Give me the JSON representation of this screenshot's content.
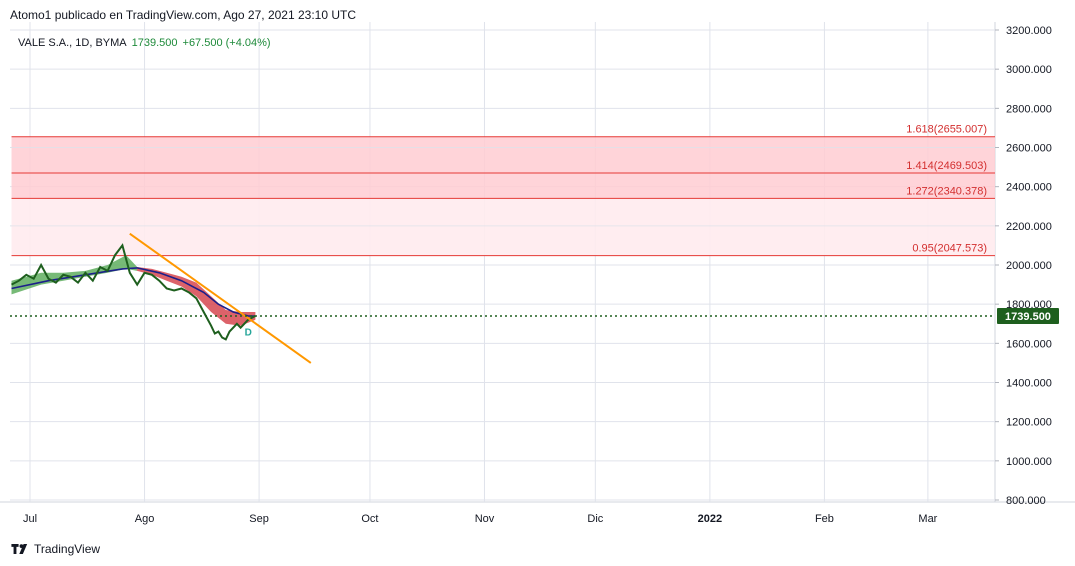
{
  "header": {
    "publisher": "Atomo1 publicado en TradingView.com, Ago 27, 2021 23:10 UTC"
  },
  "legend": {
    "symbol": "VALE S.A., 1D, BYMA",
    "price": "1739.500",
    "change": "+67.500 (+4.04%)"
  },
  "footer": {
    "brand": "TradingView",
    "logo_icon": "tradingview-logo-icon"
  },
  "colors": {
    "price_line": "#1e5f1e",
    "ma_line": "#1c1f8a",
    "cloud_bull": "#5fae5f",
    "cloud_bear": "#d6464f",
    "trendline": "#ff9800",
    "fib_line": "#e53935",
    "fib_zone_dark": "#ffcdd2",
    "fib_zone_light": "#ffebee",
    "last_price_badge": "#1e5f1e",
    "grid": "#e0e3eb",
    "text": "#131722"
  },
  "chart_data": {
    "type": "line",
    "title": "VALE S.A., 1D, BYMA",
    "ylim": [
      800,
      3200
    ],
    "y_ticks": [
      "3200.000",
      "3000.000",
      "2800.000",
      "2600.000",
      "2400.000",
      "2200.000",
      "2000.000",
      "1800.000",
      "1600.000",
      "1400.000",
      "1200.000",
      "1000.000",
      "800.000"
    ],
    "y_tick_values": [
      3200,
      3000,
      2800,
      2600,
      2400,
      2200,
      2000,
      1800,
      1600,
      1400,
      1200,
      1000,
      800
    ],
    "x_ticks": [
      "Jul",
      "Ago",
      "Sep",
      "Oct",
      "Nov",
      "Dic",
      "2022",
      "Feb",
      "Mar"
    ],
    "x_tick_days": [
      0,
      31,
      62,
      92,
      123,
      153,
      184,
      215,
      243
    ],
    "x_start_label": "Jul",
    "last_price": 1739.5,
    "last_price_label": "1739.500",
    "series": [
      {
        "x": [
          -5,
          -3,
          -1,
          1,
          3,
          5,
          7,
          9,
          11,
          13,
          15,
          17,
          19,
          21,
          23,
          25,
          27,
          29,
          31,
          33,
          35,
          37,
          39,
          41,
          43,
          45,
          47,
          49,
          50,
          51,
          52,
          53,
          54,
          55,
          56,
          57,
          58,
          59,
          60,
          61
        ],
        "values": [
          1900,
          1920,
          1950,
          1930,
          2000,
          1930,
          1910,
          1950,
          1940,
          1910,
          1960,
          1920,
          1990,
          1970,
          2050,
          2100,
          1960,
          1900,
          1960,
          1950,
          1920,
          1880,
          1870,
          1880,
          1860,
          1830,
          1760,
          1690,
          1650,
          1660,
          1630,
          1620,
          1660,
          1680,
          1700,
          1680,
          1700,
          1720,
          1730,
          1740
        ]
      },
      {
        "x": [
          -5,
          5,
          15,
          25,
          29,
          35,
          41,
          47,
          51,
          55,
          59,
          61
        ],
        "values": [
          1880,
          1920,
          1950,
          1980,
          1985,
          1960,
          1920,
          1860,
          1800,
          1760,
          1740,
          1739
        ]
      }
    ],
    "cloud": {
      "x": [
        -5,
        3,
        9,
        15,
        21,
        26,
        29,
        33,
        37,
        41,
        45,
        49,
        53,
        57,
        61
      ],
      "upper": [
        1920,
        1960,
        1960,
        1970,
        2000,
        2050,
        1990,
        1980,
        1960,
        1940,
        1910,
        1840,
        1770,
        1760,
        1760
      ],
      "lower": [
        1850,
        1900,
        1920,
        1940,
        1960,
        1980,
        1970,
        1950,
        1920,
        1890,
        1840,
        1760,
        1700,
        1690,
        1720
      ]
    },
    "trendline": {
      "x": [
        27,
        76
      ],
      "values": [
        2160,
        1500
      ]
    },
    "fib_levels": [
      {
        "label": "1.618(2655.007)",
        "value": 2655.007
      },
      {
        "label": "1.414(2469.503)",
        "value": 2469.503
      },
      {
        "label": "1.272(2340.378)",
        "value": 2340.378
      },
      {
        "label": "0.95(2047.573)",
        "value": 2047.573
      }
    ],
    "fib_extra_lines": [
      2600,
      2200
    ],
    "fib_x_range": [
      -5,
      266
    ],
    "markers": [
      {
        "label": "D",
        "x": 57,
        "value": 1660
      }
    ],
    "grid": true,
    "legend_position": "top-left"
  }
}
